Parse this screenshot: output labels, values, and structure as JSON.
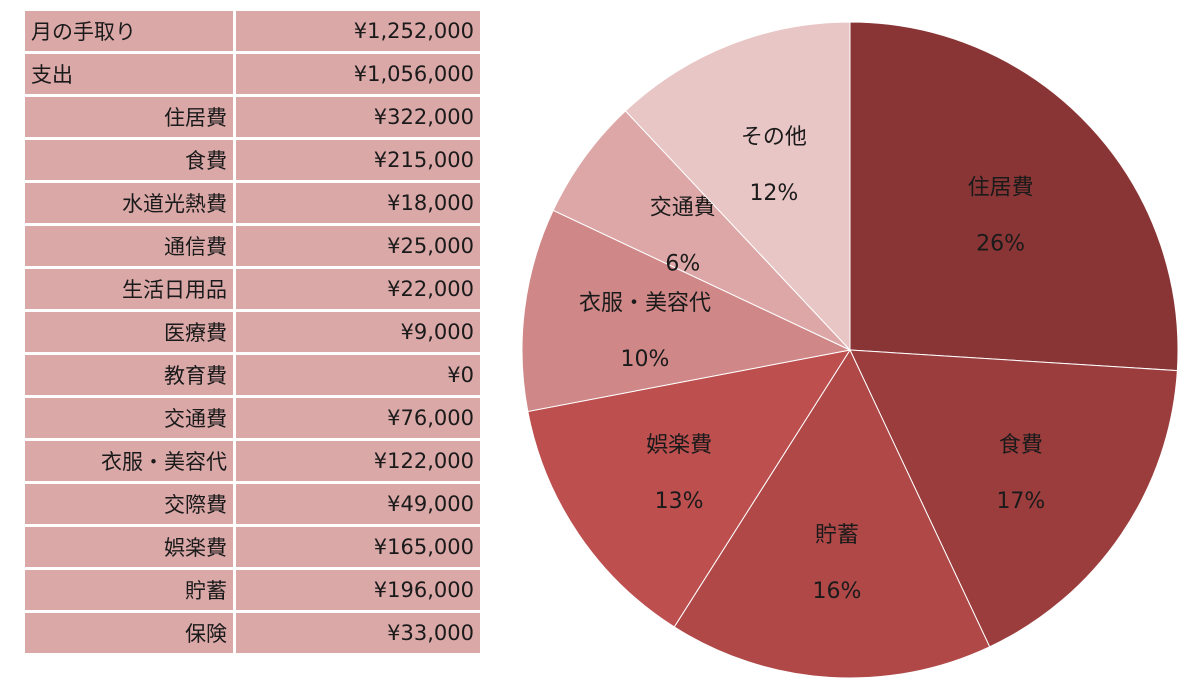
{
  "table": {
    "income": {
      "label": "月の手取り",
      "value": "¥1,252,000"
    },
    "expense": {
      "label": "支出",
      "value": "¥1,056,000"
    },
    "rows": [
      {
        "label": "住居費",
        "value": "¥322,000"
      },
      {
        "label": "食費",
        "value": "¥215,000"
      },
      {
        "label": "水道光熱費",
        "value": "¥18,000"
      },
      {
        "label": "通信費",
        "value": "¥25,000"
      },
      {
        "label": "生活日用品",
        "value": "¥22,000"
      },
      {
        "label": "医療費",
        "value": "¥9,000"
      },
      {
        "label": "教育費",
        "value": "¥0"
      },
      {
        "label": "交通費",
        "value": "¥76,000"
      },
      {
        "label": "衣服・美容代",
        "value": "¥122,000"
      },
      {
        "label": "交際費",
        "value": "¥49,000"
      },
      {
        "label": "娯楽費",
        "value": "¥165,000"
      },
      {
        "label": "貯蓄",
        "value": "¥196,000"
      },
      {
        "label": "保険",
        "value": "¥33,000"
      }
    ]
  },
  "chart_data": {
    "type": "pie",
    "start": "12 o'clock, clockwise",
    "slices": [
      {
        "label": "住居費",
        "percent_label": "26%",
        "value": 26,
        "color": "#8a3535",
        "text_color": "#1a1a1a"
      },
      {
        "label": "食費",
        "percent_label": "17%",
        "value": 17,
        "color": "#9b3d3d",
        "text_color": "#1a1a1a"
      },
      {
        "label": "貯蓄",
        "percent_label": "16%",
        "value": 16,
        "color": "#b04848",
        "text_color": "#1a1a1a"
      },
      {
        "label": "娯楽費",
        "percent_label": "13%",
        "value": 13,
        "color": "#bd4f4f",
        "text_color": "#1a1a1a"
      },
      {
        "label": "衣服・美容代",
        "percent_label": "10%",
        "value": 10,
        "color": "#cf8787",
        "text_color": "#1a1a1a"
      },
      {
        "label": "交通費",
        "percent_label": "6%",
        "value": 6,
        "color": "#dda7a7",
        "text_color": "#1a1a1a"
      },
      {
        "label": "その他",
        "percent_label": "12%",
        "value": 12,
        "color": "#e9c6c6",
        "text_color": "#1a1a1a"
      }
    ]
  }
}
